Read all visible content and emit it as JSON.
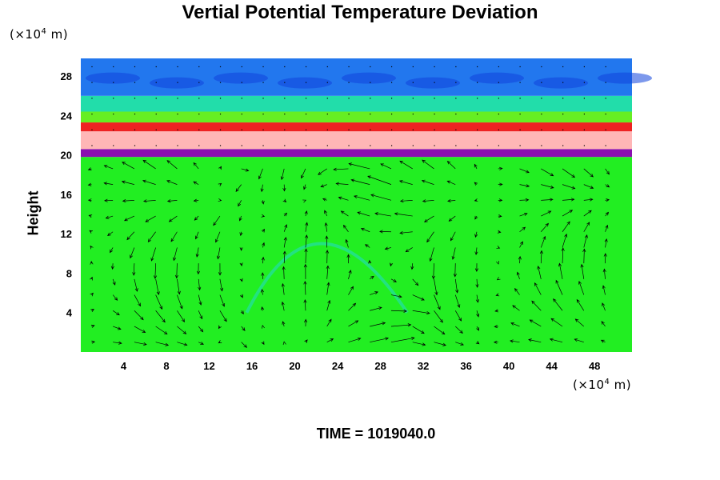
{
  "chart_data": {
    "type": "heatmap",
    "title": "Vertial Potential Temperature Deviation",
    "ylabel": "Height",
    "y_unit": "(×10",
    "y_unit_exp": "4",
    "y_unit_tail": " m)",
    "x_unit": "(×10",
    "x_unit_exp": "4",
    "x_unit_tail": " m)",
    "xlim": [
      0,
      51.5
    ],
    "ylim": [
      0,
      29.8
    ],
    "x_ticks": [
      4,
      8,
      12,
      16,
      20,
      24,
      28,
      32,
      36,
      40,
      44,
      48
    ],
    "y_ticks": [
      4,
      8,
      12,
      16,
      20,
      24,
      28
    ],
    "bands": [
      {
        "y0": 0,
        "y1": 19.8,
        "color": "#22ee22"
      },
      {
        "y0": 19.8,
        "y1": 20.6,
        "color": "#8a10b0"
      },
      {
        "y0": 20.6,
        "y1": 22.4,
        "color": "#ffb6b6"
      },
      {
        "y0": 22.4,
        "y1": 23.3,
        "color": "#ee2222"
      },
      {
        "y0": 23.3,
        "y1": 24.4,
        "color": "#66ee22"
      },
      {
        "y0": 24.4,
        "y1": 26.0,
        "color": "#22ddaa"
      },
      {
        "y0": 26.0,
        "y1": 29.8,
        "color": "#2277ee"
      }
    ],
    "time_label": "TIME = 1019040.0"
  }
}
